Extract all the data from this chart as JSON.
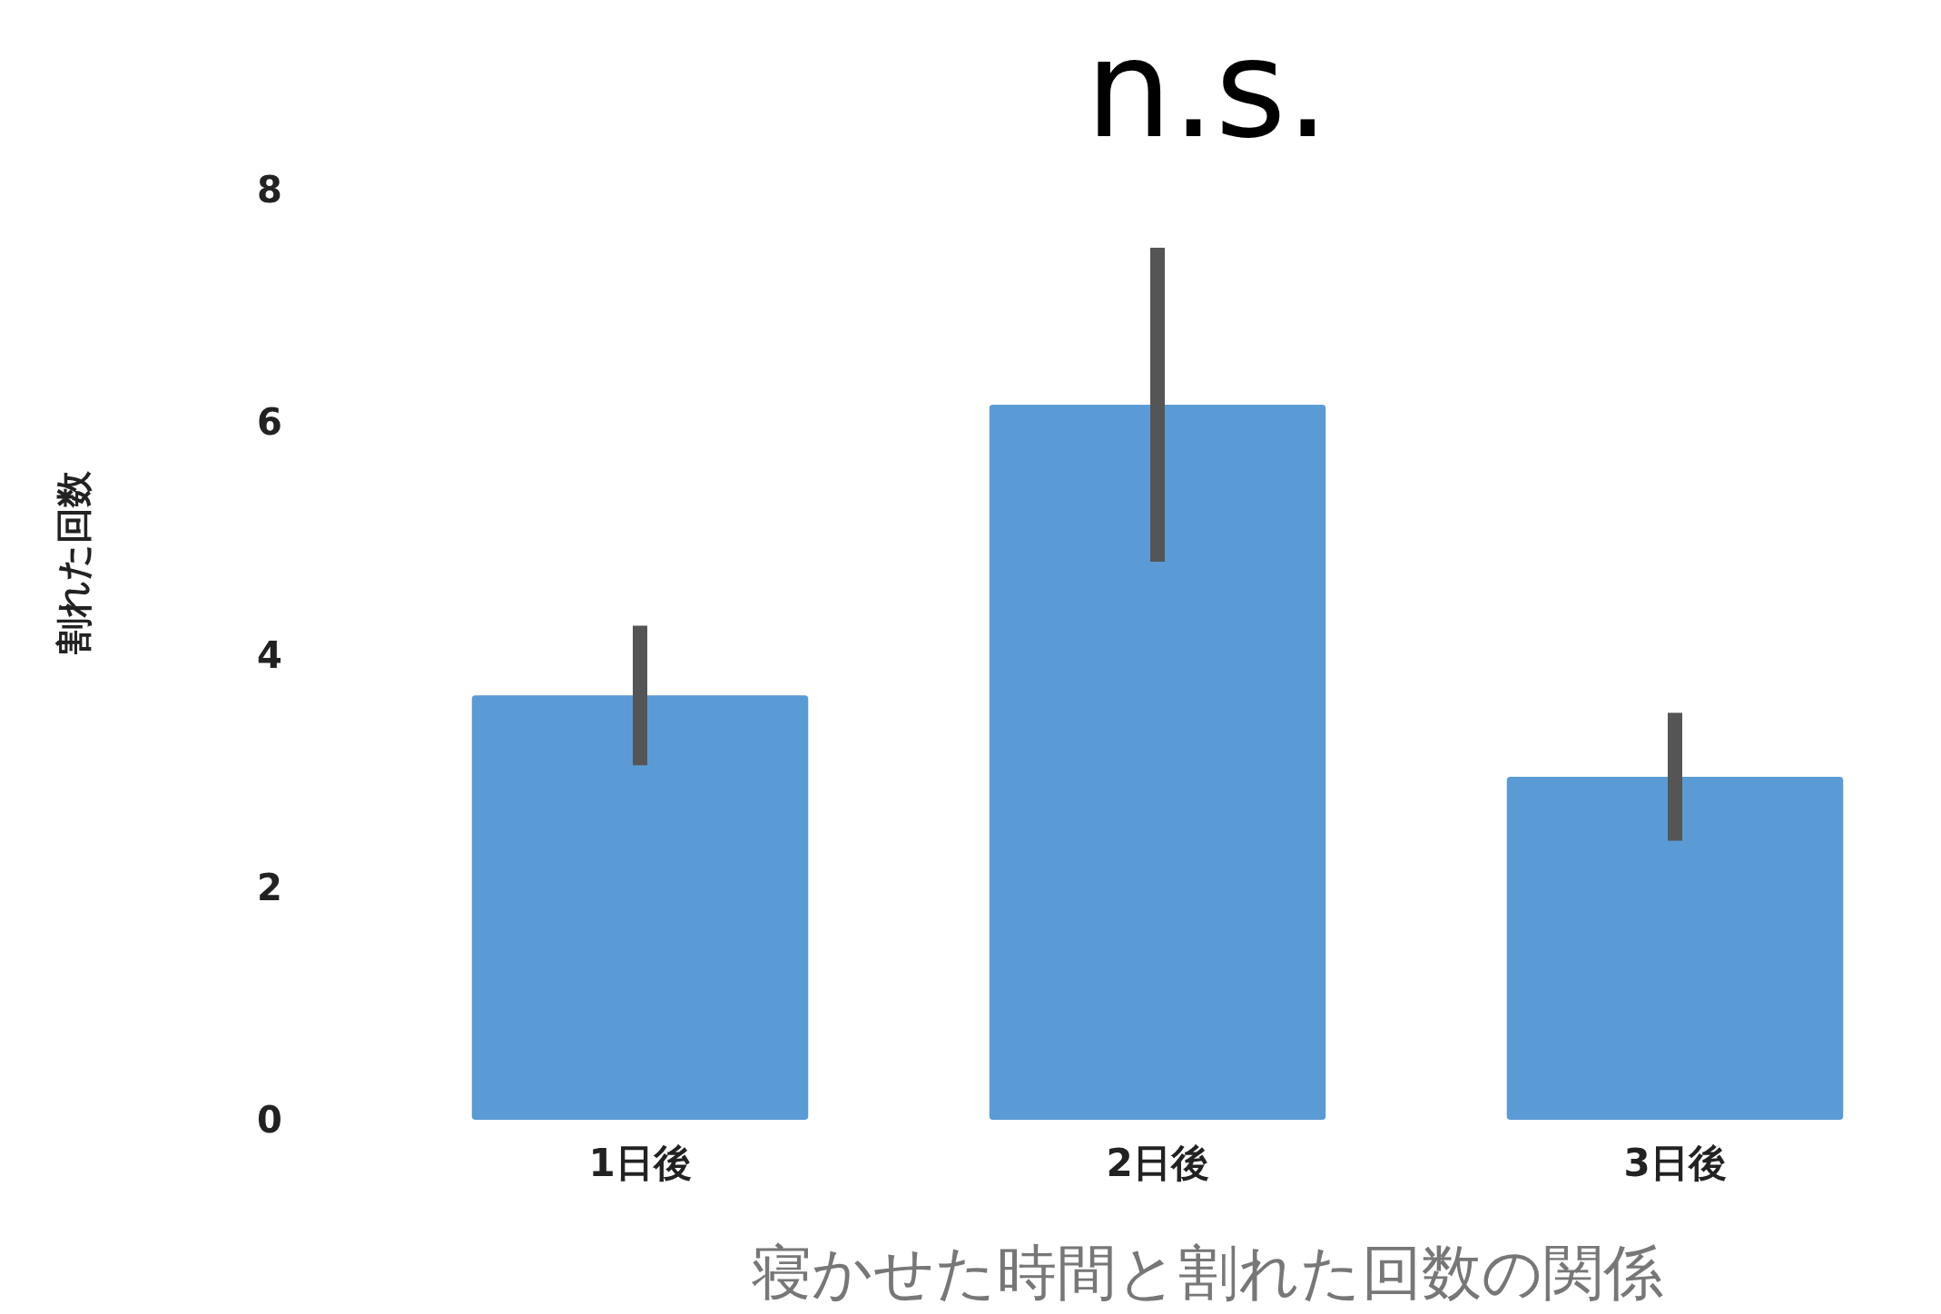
{
  "chart_data": {
    "type": "bar",
    "xlabel": "寝かせた時間と割れた回数の関係",
    "ylabel": "割れた回数",
    "annotations": [
      "n.s."
    ],
    "categories": [
      "1日後",
      "2日後",
      "3日後"
    ],
    "values": [
      3.65,
      6.15,
      2.95
    ],
    "errors": [
      [
        3.05,
        4.25
      ],
      [
        4.8,
        7.5
      ],
      [
        2.4,
        3.5
      ]
    ],
    "color": "#5b9bd5",
    "ylim": [
      0,
      8
    ],
    "yticks": [
      0,
      2,
      4,
      6,
      8
    ],
    "grid": false
  }
}
